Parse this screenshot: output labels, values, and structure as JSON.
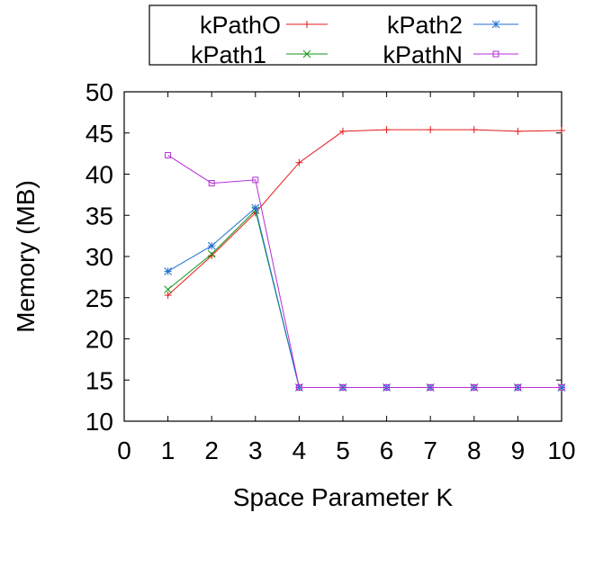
{
  "chart_data": {
    "type": "line",
    "title": "",
    "xlabel": "Space Parameter K",
    "ylabel": "Memory (MB)",
    "xlim": [
      0,
      10
    ],
    "ylim": [
      10,
      50
    ],
    "xticks": [
      0,
      1,
      2,
      3,
      4,
      5,
      6,
      7,
      8,
      9,
      10
    ],
    "yticks": [
      10,
      15,
      20,
      25,
      30,
      35,
      40,
      45,
      50
    ],
    "grid": false,
    "legend_position": "top, outside, two columns",
    "series": [
      {
        "name": "kPathO",
        "color": "#e41a1c",
        "marker": "plus",
        "x": [
          1,
          2,
          3,
          4,
          5,
          6,
          7,
          8,
          9,
          10
        ],
        "y": [
          25.3,
          30.1,
          35.3,
          41.4,
          45.2,
          45.4,
          45.4,
          45.4,
          45.2,
          45.3
        ]
      },
      {
        "name": "kPath1",
        "color": "#109618",
        "marker": "cross",
        "x": [
          1,
          2,
          3,
          4,
          5,
          6,
          7,
          8,
          9,
          10
        ],
        "y": [
          26.0,
          30.3,
          35.6,
          14.1,
          14.1,
          14.1,
          14.1,
          14.1,
          14.1,
          14.1
        ]
      },
      {
        "name": "kPath2",
        "color": "#1f6fd1",
        "marker": "star",
        "x": [
          1,
          2,
          3,
          4,
          5,
          6,
          7,
          8,
          9,
          10
        ],
        "y": [
          28.2,
          31.3,
          35.9,
          14.1,
          14.1,
          14.1,
          14.1,
          14.1,
          14.1,
          14.1
        ]
      },
      {
        "name": "kPathN",
        "color": "#b42fd6",
        "marker": "square",
        "x": [
          1,
          2,
          3,
          4,
          5,
          6,
          7,
          8,
          9,
          10
        ],
        "y": [
          42.3,
          38.9,
          39.3,
          14.1,
          14.1,
          14.1,
          14.1,
          14.1,
          14.1,
          14.1
        ]
      }
    ]
  }
}
